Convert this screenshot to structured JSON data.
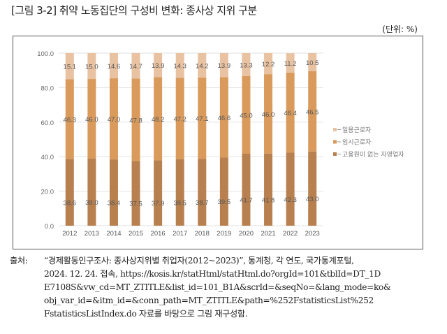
{
  "figure": {
    "title": "[그림 3-2] 취약 노동집단의 구성비 변화: 종사상 지위 구분",
    "unit": "(단위: %)"
  },
  "chart_data": {
    "type": "bar",
    "stacked": true,
    "categories": [
      "2012",
      "2013",
      "2014",
      "2015",
      "2016",
      "2017",
      "2018",
      "2019",
      "2020",
      "2021",
      "2022",
      "2023"
    ],
    "series": [
      {
        "name": "고용원이 없는 자영업자",
        "color": "#b8804f",
        "values": [
          38.6,
          39.0,
          38.4,
          37.5,
          37.9,
          38.5,
          38.7,
          39.5,
          41.7,
          41.8,
          42.3,
          43.0
        ]
      },
      {
        "name": "임시근로자",
        "color": "#d99a5c",
        "values": [
          46.3,
          46.0,
          47.0,
          47.8,
          48.2,
          47.2,
          47.1,
          46.6,
          45.0,
          46.0,
          46.4,
          46.5
        ]
      },
      {
        "name": "일용근로자",
        "color": "#e9c2a2",
        "values": [
          15.1,
          15.0,
          14.6,
          14.7,
          13.9,
          14.3,
          14.2,
          13.9,
          13.3,
          12.2,
          11.2,
          10.5
        ]
      }
    ],
    "ylim": [
      0,
      100
    ],
    "yticks": [
      "0.0",
      "20.0",
      "40.0",
      "60.0",
      "80.0",
      "100.0"
    ],
    "grid": true,
    "legend": "right",
    "legend_order": [
      "일용근로자",
      "임시근로자",
      "고용원이 없는 자영업자"
    ]
  },
  "source": {
    "label": "출처:",
    "lines": [
      "“경제활동인구조사: 종사상지위별 취업자(2012~2023)”, 통계청, 각 연도, 국가통계포털,",
      "2024. 12. 24. 접속, https://kosis.kr/statHtml/statHtml.do?orgId=101&tblId=DT_1D",
      "E7108S&vw_cd=MT_ZTITLE&list_id=101_B1A&scrId=&seqNo=&lang_mode=ko&",
      "obj_var_id=&itm_id=&conn_path=MT_ZTITLE&path=%252FstatisticsList%252",
      "FstatisticsListIndex.do 자료를 바탕으로 그림 재구성함."
    ]
  }
}
